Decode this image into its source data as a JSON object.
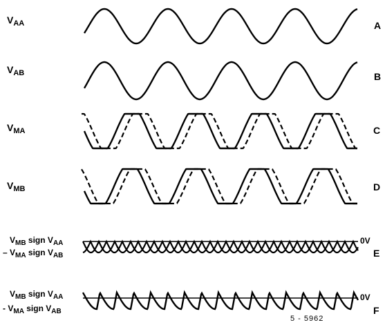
{
  "rows": [
    {
      "main": "V",
      "sub": "AA",
      "letter": "A"
    },
    {
      "main": "V",
      "sub": "AB",
      "letter": "B"
    },
    {
      "main": "V",
      "sub": "MA",
      "letter": "C"
    },
    {
      "main": "V",
      "sub": "MB",
      "letter": "D"
    }
  ],
  "lower": [
    {
      "line1": {
        "a": "V",
        "a_sub": "MB",
        "mid": " sign ",
        "b": "V",
        "b_sub": "AA"
      },
      "line2": {
        "prefix": "– ",
        "a": "V",
        "a_sub": "MA",
        "mid": " sign ",
        "b": "V",
        "b_sub": "AB"
      },
      "zero": "0V",
      "letter": "E"
    },
    {
      "line1": {
        "a": "V",
        "a_sub": "MB",
        "mid": " sign ",
        "b": "V",
        "b_sub": "AA"
      },
      "line2": {
        "prefix": "- ",
        "a": "V",
        "a_sub": "MA",
        "mid": " sign ",
        "b": "V",
        "b_sub": "AB"
      },
      "zero": "0V",
      "letter": "F"
    }
  ],
  "figure_number": "5 - 5962",
  "colors": {
    "ink": "#000000",
    "background": "#ffffff"
  }
}
